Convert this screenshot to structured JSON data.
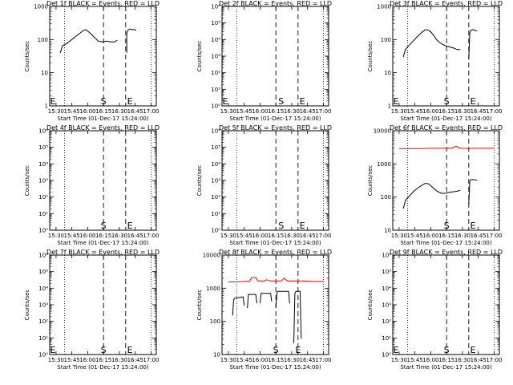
{
  "chart_data": [
    {
      "type": "line",
      "title": "Det 1f BLACK = Events, RED = LLD",
      "xlabel": "Start Time (01-Dec-17 15:24:00)",
      "ylabel": "Counts/sec",
      "xlim": [
        "15:24",
        "17:05"
      ],
      "x_ticks": [
        "15:30",
        "15:45",
        "16:00",
        "16:15",
        "16:30",
        "16:45",
        "17:00"
      ],
      "yscale": "log",
      "ylim": [
        1,
        1000
      ],
      "y_ticks": [
        "1",
        "10",
        "100",
        "1000"
      ],
      "dotted_lines": [
        "15:38",
        "17:00"
      ],
      "dashed_lines": [
        "16:15",
        "16:36"
      ],
      "markers": [
        {
          "label": "E",
          "x": "15:24"
        },
        {
          "label": "S",
          "x": "16:15"
        },
        {
          "label": "E",
          "x": "16:40"
        }
      ],
      "series": [
        {
          "color": "#000000",
          "segments": [
            {
              "x": [
                "15:34",
                "15:36",
                "15:40",
                "15:44",
                "15:48",
                "15:52",
                "15:55",
                "15:58",
                "16:00",
                "16:03",
                "16:06",
                "16:10",
                "16:14",
                "16:18",
                "16:22",
                "16:25",
                "16:28"
              ],
              "y": [
                40,
                65,
                75,
                95,
                120,
                150,
                180,
                200,
                180,
                150,
                120,
                90,
                85,
                90,
                85,
                85,
                95
              ]
            },
            {
              "x": [
                "16:37",
                "16:37",
                "16:38",
                "16:40",
                "16:42",
                "16:44",
                "16:46"
              ],
              "y": [
                40,
                150,
                190,
                210,
                200,
                200,
                190
              ]
            }
          ]
        }
      ]
    },
    {
      "type": "line",
      "title": "Det 2f BLACK = Events, RED = LLD",
      "xlabel": "Start Time (01-Dec-17 15:24:00)",
      "ylabel": "Counts/sec",
      "xlim": [
        "15:24",
        "17:05"
      ],
      "x_ticks": [
        "15:30",
        "15:45",
        "16:00",
        "16:15",
        "16:30",
        "16:45",
        "17:00"
      ],
      "yscale": "log",
      "ylim": [
        1,
        1000000
      ],
      "y_ticks": [
        "10⁰",
        "10¹",
        "10²",
        "10³",
        "10⁴",
        "10⁵",
        "10⁶"
      ],
      "dotted_lines": [
        "15:38",
        "17:00"
      ],
      "dashed_lines": [
        "16:15",
        "16:36"
      ],
      "markers": [
        {
          "label": "E",
          "x": "15:24"
        },
        {
          "label": "S",
          "x": "16:20"
        },
        {
          "label": "E",
          "x": "16:40"
        }
      ],
      "series": []
    },
    {
      "type": "line",
      "title": "Det 3f BLACK = Events, RED = LLD",
      "xlabel": "Start Time (01-Dec-17 15:24:00)",
      "ylabel": "Counts/sec",
      "xlim": [
        "15:24",
        "17:05"
      ],
      "x_ticks": [
        "15:30",
        "15:45",
        "16:00",
        "16:15",
        "16:30",
        "16:45",
        "17:00"
      ],
      "yscale": "log",
      "ylim": [
        1,
        1000
      ],
      "y_ticks": [
        "1",
        "10",
        "100",
        "1000"
      ],
      "dotted_lines": [
        "15:38",
        "17:00"
      ],
      "dashed_lines": [
        "16:15",
        "16:36"
      ],
      "markers": [
        {
          "label": "E",
          "x": "15:24"
        },
        {
          "label": "S",
          "x": "16:15"
        },
        {
          "label": "E",
          "x": "16:40"
        }
      ],
      "series": [
        {
          "color": "#000000",
          "segments": [
            {
              "x": [
                "15:34",
                "15:36",
                "15:40",
                "15:44",
                "15:48",
                "15:52",
                "15:55",
                "15:58",
                "16:00",
                "16:03",
                "16:06",
                "16:10",
                "16:14",
                "16:18",
                "16:22",
                "16:25",
                "16:28"
              ],
              "y": [
                30,
                50,
                70,
                95,
                130,
                170,
                200,
                190,
                170,
                130,
                95,
                75,
                65,
                60,
                55,
                50,
                50
              ]
            },
            {
              "x": [
                "16:36",
                "16:37",
                "16:38",
                "16:40",
                "16:42",
                "16:44"
              ],
              "y": [
                25,
                160,
                190,
                200,
                190,
                180
              ]
            }
          ]
        }
      ]
    },
    {
      "type": "line",
      "title": "Det 4f BLACK = Events, RED = LLD",
      "xlabel": "Start Time (01-Dec-17 15:24:00)",
      "ylabel": "Counts/sec",
      "xlim": [
        "15:24",
        "17:05"
      ],
      "x_ticks": [
        "15:30",
        "15:45",
        "16:00",
        "16:15",
        "16:30",
        "16:45",
        "17:00"
      ],
      "yscale": "log",
      "ylim": [
        1,
        1000000
      ],
      "y_ticks": [
        "10⁰",
        "10¹",
        "10²",
        "10³",
        "10⁴",
        "10⁵",
        "10⁶"
      ],
      "dotted_lines": [
        "15:38",
        "17:00"
      ],
      "dashed_lines": [
        "16:15",
        "16:36"
      ],
      "markers": [
        {
          "label": "S",
          "x": "16:15"
        },
        {
          "label": "E",
          "x": "16:40"
        }
      ],
      "series": []
    },
    {
      "type": "line",
      "title": "Det 5f BLACK = Events, RED = LLD",
      "xlabel": "Start Time (01-Dec-17 15:24:00)",
      "ylabel": "Counts/sec",
      "xlim": [
        "15:24",
        "17:05"
      ],
      "x_ticks": [
        "15:30",
        "15:45",
        "16:00",
        "16:15",
        "16:30",
        "16:45",
        "17:00"
      ],
      "yscale": "log",
      "ylim": [
        1,
        1000000
      ],
      "y_ticks": [
        "10⁰",
        "10¹",
        "10²",
        "10³",
        "10⁴",
        "10⁵",
        "10⁶"
      ],
      "dotted_lines": [
        "15:38",
        "17:00"
      ],
      "dashed_lines": [
        "16:15",
        "16:36"
      ],
      "markers": [
        {
          "label": "S",
          "x": "16:20"
        },
        {
          "label": "E",
          "x": "16:40"
        }
      ],
      "series": []
    },
    {
      "type": "line",
      "title": "Det 6f BLACK = Events, RED = LLD",
      "xlabel": "Start Time (01-Dec-17 15:24:00)",
      "ylabel": "Counts/sec",
      "xlim": [
        "15:24",
        "17:05"
      ],
      "x_ticks": [
        "15:30",
        "15:45",
        "16:00",
        "16:15",
        "16:30",
        "16:45",
        "17:00"
      ],
      "yscale": "log",
      "ylim": [
        10,
        10000
      ],
      "y_ticks": [
        "10",
        "100",
        "1000",
        "10000"
      ],
      "dotted_lines": [
        "15:38",
        "17:00"
      ],
      "dashed_lines": [
        "16:15",
        "16:36"
      ],
      "markers": [
        {
          "label": "S",
          "x": "16:15"
        },
        {
          "label": "E",
          "x": "16:40"
        }
      ],
      "series": [
        {
          "color": "#ff0000",
          "segments": [
            {
              "x": [
                "15:30",
                "15:40",
                "15:50",
                "16:00",
                "16:10",
                "16:15",
                "16:20",
                "16:24",
                "16:27",
                "16:30",
                "16:36",
                "16:40",
                "16:50",
                "17:00"
              ],
              "y": [
                2900,
                2900,
                2900,
                2950,
                2950,
                2950,
                3000,
                3400,
                3000,
                2950,
                2900,
                2950,
                2950,
                2950
              ]
            }
          ]
        },
        {
          "color": "#000000",
          "segments": [
            {
              "x": [
                "15:34",
                "15:36",
                "15:40",
                "15:44",
                "15:48",
                "15:52",
                "15:55",
                "15:58",
                "16:00",
                "16:03",
                "16:06",
                "16:10",
                "16:14",
                "16:18",
                "16:22",
                "16:25",
                "16:28"
              ],
              "y": [
                45,
                80,
                110,
                150,
                190,
                230,
                260,
                250,
                220,
                180,
                150,
                130,
                130,
                140,
                145,
                150,
                160
              ]
            },
            {
              "x": [
                "16:36",
                "16:37",
                "16:38",
                "16:40",
                "16:42",
                "16:44"
              ],
              "y": [
                60,
                300,
                330,
                340,
                330,
                320
              ]
            }
          ]
        }
      ]
    },
    {
      "type": "line",
      "title": "Det 7f BLACK = Events, RED = LLD",
      "xlabel": "Start Time (01-Dec-17 15:24:00)",
      "ylabel": "Counts/sec",
      "xlim": [
        "15:24",
        "17:05"
      ],
      "x_ticks": [
        "15:30",
        "15:45",
        "16:00",
        "16:15",
        "16:30",
        "16:45",
        "17:00"
      ],
      "yscale": "log",
      "ylim": [
        1,
        1000000
      ],
      "y_ticks": [
        "10⁰",
        "10¹",
        "10²",
        "10³",
        "10⁴",
        "10⁵",
        "10⁶"
      ],
      "dotted_lines": [
        "15:38",
        "17:00"
      ],
      "dashed_lines": [
        "16:15",
        "16:36"
      ],
      "markers": [
        {
          "label": "E",
          "x": "15:24"
        },
        {
          "label": "S",
          "x": "16:15"
        },
        {
          "label": "E",
          "x": "16:40"
        }
      ],
      "series": []
    },
    {
      "type": "line",
      "title": "Det 8f BLACK = Events, RED = LLD",
      "xlabel": "Start Time (01-Dec-17 15:24:00)",
      "ylabel": "Counts/sec",
      "xlim": [
        "15:24",
        "17:05"
      ],
      "x_ticks": [
        "15:30",
        "15:45",
        "16:00",
        "16:15",
        "16:30",
        "16:45",
        "17:00"
      ],
      "yscale": "log",
      "ylim": [
        10,
        10000
      ],
      "y_ticks": [
        "10",
        "100",
        "1000",
        "10000"
      ],
      "dotted_lines": [
        "15:38",
        "17:00"
      ],
      "dashed_lines": [
        "16:15",
        "16:36"
      ],
      "markers": [
        {
          "label": "S",
          "x": "16:15"
        },
        {
          "label": "E",
          "x": "16:36"
        }
      ],
      "series": [
        {
          "color": "#ff0000",
          "segments": [
            {
              "x": [
                "15:30",
                "15:38",
                "15:45",
                "15:50",
                "15:52",
                "15:56",
                "15:58",
                "16:04",
                "16:06",
                "16:10",
                "16:15",
                "16:20",
                "16:23",
                "16:26",
                "16:30",
                "16:40",
                "16:50",
                "17:00"
              ],
              "y": [
                1550,
                1550,
                1600,
                1600,
                2100,
                2100,
                1650,
                1650,
                1800,
                1650,
                1650,
                1650,
                2000,
                1650,
                1650,
                1650,
                1600,
                1600
              ]
            }
          ]
        },
        {
          "color": "#000000",
          "segments": [
            {
              "x": [
                "15:34",
                "15:35",
                "15:36",
                "15:44",
                "15:45"
              ],
              "y": [
                150,
                450,
                500,
                550,
                300
              ]
            },
            {
              "x": [
                "15:48",
                "15:49",
                "15:50",
                "15:56",
                "15:57"
              ],
              "y": [
                250,
                650,
                650,
                650,
                350
              ]
            },
            {
              "x": [
                "16:00",
                "16:01",
                "16:02",
                "16:10",
                "16:11"
              ],
              "y": [
                350,
                700,
                700,
                700,
                400
              ]
            },
            {
              "x": [
                "16:15",
                "16:16",
                "16:17",
                "16:27",
                "16:28"
              ],
              "y": [
                250,
                750,
                800,
                800,
                350
              ]
            },
            {
              "x": [
                "16:32",
                "16:33",
                "16:34",
                "16:38",
                "16:39"
              ],
              "y": [
                22,
                700,
                800,
                800,
                30
              ]
            }
          ]
        }
      ]
    },
    {
      "type": "line",
      "title": "Det 9f BLACK = Events, RED = LLD",
      "xlabel": "Start Time (01-Dec-17 15:24:00)",
      "ylabel": "Counts/sec",
      "xlim": [
        "15:24",
        "17:05"
      ],
      "x_ticks": [
        "15:30",
        "15:45",
        "16:00",
        "16:15",
        "16:30",
        "16:45",
        "17:00"
      ],
      "yscale": "log",
      "ylim": [
        1,
        1000000
      ],
      "y_ticks": [
        "10⁰",
        "10¹",
        "10²",
        "10³",
        "10⁴",
        "10⁵",
        "10⁶"
      ],
      "dotted_lines": [
        "15:38",
        "17:00"
      ],
      "dashed_lines": [
        "16:15",
        "16:36"
      ],
      "markers": [
        {
          "label": "E",
          "x": "15:24"
        },
        {
          "label": "S",
          "x": "16:15"
        },
        {
          "label": "E",
          "x": "16:40"
        }
      ],
      "series": []
    }
  ]
}
